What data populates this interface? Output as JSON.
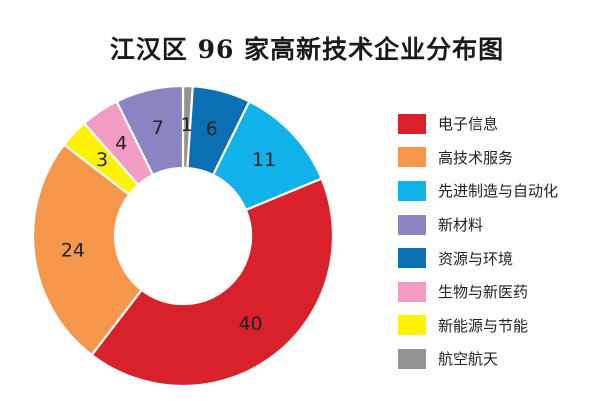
{
  "chart_data": {
    "type": "pie",
    "title": "江汉区 96 家高新技术企业分布图",
    "categories": [
      "电子信息",
      "高技术服务",
      "先进制造与自动化",
      "新材料",
      "资源与环境",
      "生物与新医药",
      "新能源与节能",
      "航空航天"
    ],
    "values": [
      40,
      24,
      11,
      7,
      6,
      4,
      3,
      1
    ],
    "colors": [
      "#d9212c",
      "#f5964a",
      "#11b2ea",
      "#8a84c1",
      "#0b6fb3",
      "#f29cc4",
      "#fff200",
      "#949494"
    ],
    "slice_order": [
      7,
      4,
      2,
      0,
      1,
      6,
      5,
      3
    ],
    "donut": true,
    "legend_position": "right"
  }
}
